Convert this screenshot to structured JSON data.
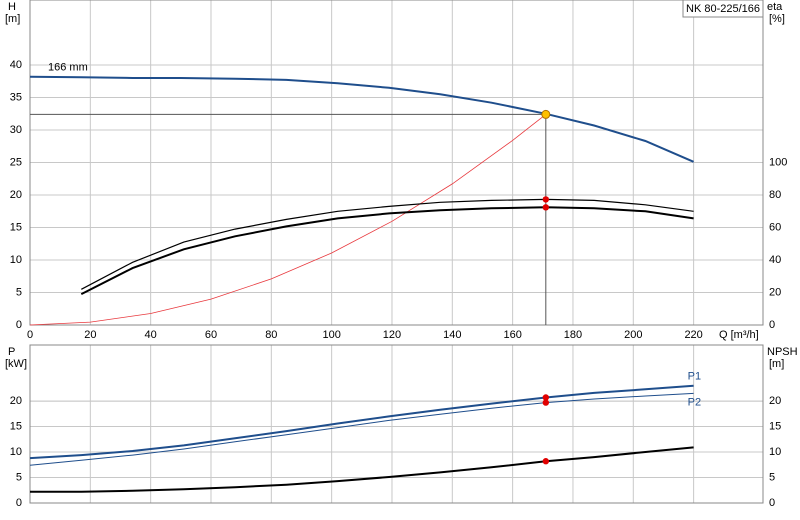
{
  "chart_data": [
    {
      "type": "line",
      "title": "NK 80-225/166",
      "ylabel": "H",
      "yunit": "[m]",
      "y2label": "eta",
      "y2unit": "[%]",
      "xlabel": "Q [m³/h]",
      "curve_label": "166 mm",
      "xlim": [
        0,
        243
      ],
      "xticks": [
        0,
        20,
        40,
        60,
        80,
        100,
        120,
        140,
        160,
        180,
        200,
        220
      ],
      "ylim": [
        0,
        50
      ],
      "yticks": [
        0,
        5,
        10,
        15,
        20,
        25,
        30,
        35,
        40
      ],
      "y2lim": [
        0,
        200
      ],
      "y2ticks": [
        0,
        20,
        40,
        60,
        80,
        100
      ],
      "grid": true,
      "series": [
        {
          "color": "#1f4e8c",
          "width": 2,
          "x": [
            0,
            17,
            34,
            50,
            68,
            85,
            102,
            119,
            136,
            153,
            171,
            187,
            204,
            220
          ],
          "values": [
            38.2,
            38.1,
            38.0,
            38.0,
            37.9,
            37.7,
            37.2,
            36.5,
            35.5,
            34.2,
            32.5,
            30.7,
            28.3,
            25.1
          ]
        },
        {
          "color": "#e8383d",
          "width": 0.8,
          "x": [
            0,
            20,
            40,
            60,
            80,
            100,
            120,
            140,
            160,
            171
          ],
          "values": [
            0,
            0.44,
            1.77,
            3.99,
            7.09,
            11.08,
            15.95,
            21.7,
            28.4,
            32.4
          ]
        },
        {
          "color": "#000000",
          "width": 1.2,
          "axis": "y2",
          "x": [
            17,
            34,
            51,
            68,
            85,
            102,
            119,
            136,
            153,
            171,
            187,
            204,
            220
          ],
          "values": [
            22,
            38.6,
            51,
            59,
            65,
            70,
            73,
            75.5,
            76.7,
            77.3,
            76.7,
            74,
            70
          ]
        },
        {
          "color": "#000000",
          "width": 2,
          "axis": "y2",
          "x": [
            17,
            34,
            51,
            68,
            85,
            102,
            119,
            136,
            153,
            171,
            187,
            204,
            220
          ],
          "values": [
            19,
            35,
            46.6,
            54.6,
            60.7,
            65.6,
            68.7,
            70.6,
            71.8,
            72.4,
            71.8,
            70,
            65.6
          ]
        },
        {
          "marker": "dot",
          "crosshair": true,
          "color": "#ffc000",
          "x": [
            171
          ],
          "values": [
            32.4
          ]
        },
        {
          "marker": "dot",
          "color": "#e00000",
          "axis": "y2",
          "x": [
            171,
            171
          ],
          "values": [
            77.3,
            72.4
          ]
        }
      ]
    },
    {
      "type": "line",
      "ylabel": "P",
      "yunit": "[kW]",
      "y2label": "NPSH",
      "y2unit": "[m]",
      "xlim": [
        0,
        243
      ],
      "xticks": [
        0,
        20,
        40,
        60,
        80,
        100,
        120,
        140,
        160,
        180,
        200,
        220
      ],
      "ylim": [
        0,
        31
      ],
      "yticks": [
        0,
        5,
        10,
        15,
        20
      ],
      "y2lim": [
        0,
        31
      ],
      "y2ticks": [
        0,
        5,
        10,
        15,
        20
      ],
      "grid": true,
      "series": [
        {
          "name": "P1",
          "color": "#1f4e8c",
          "width": 2,
          "x": [
            0,
            17,
            34,
            51,
            68,
            85,
            102,
            119,
            136,
            153,
            171,
            187,
            204,
            220
          ],
          "values": [
            8.8,
            9.4,
            10.2,
            11.3,
            12.7,
            14.1,
            15.6,
            17.0,
            18.3,
            19.5,
            20.7,
            21.6,
            22.3,
            23.0
          ]
        },
        {
          "name": "P2",
          "color": "#1f4e8c",
          "width": 1,
          "x": [
            0,
            17,
            34,
            51,
            68,
            85,
            102,
            119,
            136,
            153,
            171,
            187,
            204,
            220
          ],
          "values": [
            7.4,
            8.4,
            9.4,
            10.6,
            12.0,
            13.4,
            14.8,
            16.2,
            17.4,
            18.6,
            19.7,
            20.4,
            21.0,
            21.5
          ]
        },
        {
          "color": "#000000",
          "width": 2,
          "axis": "y2",
          "x": [
            0,
            17,
            34,
            51,
            68,
            85,
            102,
            119,
            136,
            153,
            171,
            187,
            204,
            220
          ],
          "values": [
            2.2,
            2.2,
            2.4,
            2.7,
            3.1,
            3.6,
            4.3,
            5.1,
            6.0,
            7.0,
            8.2,
            9.0,
            10.0,
            10.9
          ]
        },
        {
          "marker": "dot",
          "color": "#e00000",
          "x": [
            171,
            171
          ],
          "values": [
            20.7,
            19.7
          ]
        },
        {
          "marker": "dot",
          "color": "#e00000",
          "axis": "y2",
          "x": [
            171
          ],
          "values": [
            8.2
          ]
        }
      ]
    }
  ]
}
